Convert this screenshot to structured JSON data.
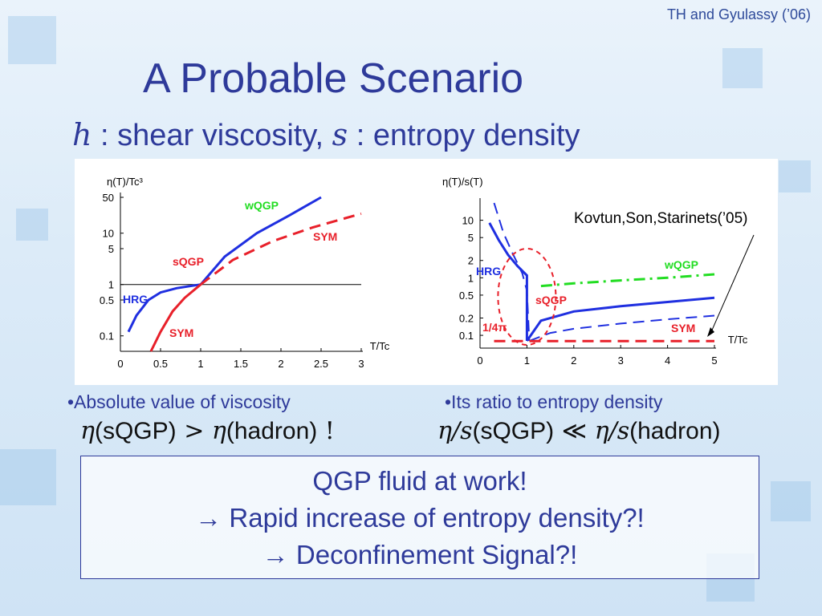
{
  "citation": "TH and Gyulassy (’06)",
  "title": "A Probable Scenario",
  "subtitle": {
    "eta_symbol": "h",
    "text1": " : shear viscosity, ",
    "s_symbol": "s",
    "text2": " : entropy density"
  },
  "annotation": "Kovtun,Son,Starinets(’05)",
  "bullets": {
    "left": "•Absolute value of viscosity",
    "right": "•Its ratio to entropy density"
  },
  "formulas": {
    "left": {
      "eta1": "η",
      "arg1": "(sQGP)",
      "op": " > ",
      "eta2": "η",
      "arg2": "(hadron)",
      "bang": " !"
    },
    "right": {
      "ratio1": "η/s",
      "arg1": "(sQGP)",
      "op": " ≪ ",
      "ratio2": "η/s",
      "arg2": "(hadron)"
    }
  },
  "box": {
    "line1": "QGP fluid at work!",
    "line2": "→ Rapid increase of entropy density?!",
    "line3": "→ Deconfinement Signal?!"
  },
  "colors": {
    "blue": "#1f2fe0",
    "red": "#e8202a",
    "green": "#22dd22",
    "text": "#2e3a9a"
  },
  "chart_data": [
    {
      "type": "line",
      "ylabel": "η(T)/Tc³",
      "xlabel": "T/Tc",
      "x_ticks": [
        "0",
        "0.5",
        "1",
        "1.5",
        "2",
        "2.5",
        "3"
      ],
      "y_ticks": [
        "0.1",
        "0.5",
        "1",
        "5",
        "10",
        "50"
      ],
      "xlim": [
        0,
        3
      ],
      "ylim": [
        0.05,
        50
      ],
      "y_scale": "log",
      "reference_line_y": 1,
      "series": [
        {
          "name": "wQGP",
          "color": "#1f2fe0",
          "style": "solid",
          "x": [
            1.0,
            1.3,
            1.7,
            2.1,
            2.5
          ],
          "y": [
            1.0,
            3.5,
            10,
            22,
            50
          ]
        },
        {
          "name": "SYM",
          "color": "#e8202a",
          "style": "dashed",
          "x": [
            1.0,
            1.4,
            1.9,
            2.4,
            3.0
          ],
          "y": [
            1.0,
            3.0,
            7,
            13,
            24
          ]
        },
        {
          "name": "HRG",
          "color": "#1f2fe0",
          "style": "solid",
          "x": [
            0.1,
            0.2,
            0.35,
            0.5,
            0.7,
            0.9,
            1.0
          ],
          "y": [
            0.12,
            0.25,
            0.5,
            0.7,
            0.85,
            0.95,
            1.0
          ]
        },
        {
          "name": "SYM",
          "color": "#e8202a",
          "style": "solid",
          "x": [
            0.38,
            0.5,
            0.65,
            0.8,
            1.0
          ],
          "y": [
            0.05,
            0.12,
            0.3,
            0.55,
            1.0
          ]
        }
      ],
      "labels": [
        "wQGP",
        "SYM",
        "sQGP",
        "HRG",
        "SYM"
      ]
    },
    {
      "type": "line",
      "ylabel": "η(T)/s(T)",
      "xlabel": "T/Tc",
      "x_ticks": [
        "0",
        "1",
        "2",
        "3",
        "4",
        "5"
      ],
      "y_ticks": [
        "0.1",
        "0.2",
        "0.5",
        "1",
        "2",
        "5",
        "10"
      ],
      "xlim": [
        0,
        5
      ],
      "ylim": [
        0.06,
        20
      ],
      "y_scale": "log",
      "series": [
        {
          "name": "wQGP",
          "color": "#22dd22",
          "style": "dashdot",
          "x": [
            1.3,
            2.0,
            3.0,
            4.0,
            5.0
          ],
          "y": [
            0.72,
            0.8,
            0.9,
            1.0,
            1.15
          ]
        },
        {
          "name": "sQGP",
          "color": "#1f2fe0",
          "style": "solid",
          "x": [
            1.0,
            1.3,
            2.0,
            3.0,
            4.0,
            5.0
          ],
          "y": [
            0.08,
            0.18,
            0.26,
            0.32,
            0.38,
            0.45
          ]
        },
        {
          "name": "HRG",
          "color": "#1f2fe0",
          "style": "solid",
          "x": [
            0.2,
            0.4,
            0.6,
            0.8,
            1.0,
            1.0
          ],
          "y": [
            9,
            4.5,
            2.5,
            1.6,
            1.1,
            0.08
          ]
        },
        {
          "name": "",
          "color": "#1f2fe0",
          "style": "dashed",
          "x": [
            0.3,
            0.5,
            0.7,
            0.9,
            1.0,
            1.05
          ],
          "y": [
            20,
            6,
            2.6,
            1.2,
            0.6,
            0.08
          ]
        },
        {
          "name": "",
          "color": "#1f2fe0",
          "style": "dashed",
          "x": [
            1.05,
            1.5,
            2.0,
            3.0,
            4.0,
            5.0
          ],
          "y": [
            0.08,
            0.11,
            0.13,
            0.16,
            0.19,
            0.22
          ]
        },
        {
          "name": "SYM",
          "color": "#e8202a",
          "style": "dashed",
          "x": [
            0.3,
            5.0
          ],
          "y": [
            0.0796,
            0.0796
          ]
        }
      ],
      "labels": [
        "HRG",
        "sQGP",
        "wQGP",
        "1/4π",
        "SYM"
      ]
    }
  ]
}
